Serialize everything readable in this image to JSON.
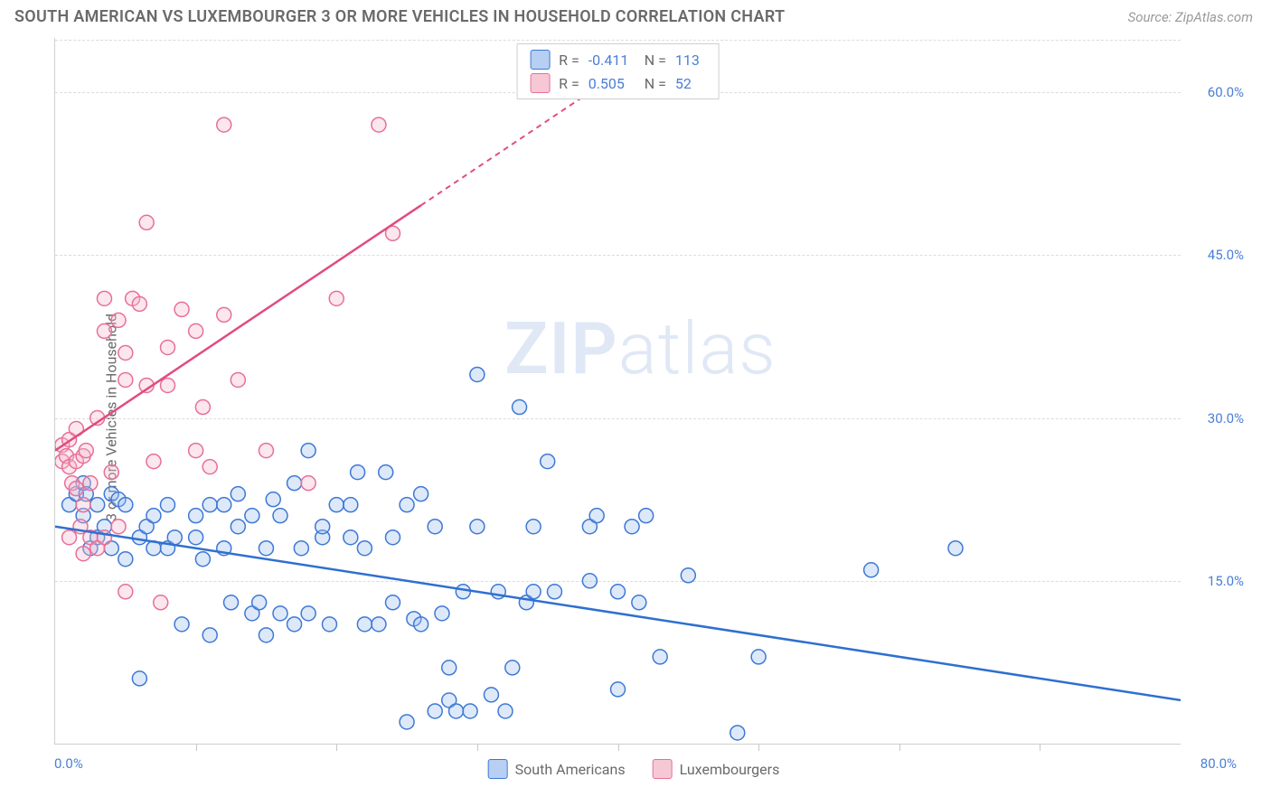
{
  "header": {
    "title": "SOUTH AMERICAN VS LUXEMBOURGER 3 OR MORE VEHICLES IN HOUSEHOLD CORRELATION CHART",
    "source": "Source: ZipAtlas.com"
  },
  "chart": {
    "type": "scatter",
    "ylabel": "3 or more Vehicles in Household",
    "background_color": "#ffffff",
    "grid_color": "#dcdcdc",
    "axis_color": "#d0d0d0",
    "tick_color": "#c8c8c8",
    "xlim": [
      0,
      80
    ],
    "ylim": [
      0,
      65
    ],
    "x_origin_label": "0.0%",
    "x_max_label": "80.0%",
    "xtick_positions": [
      10,
      20,
      30,
      40,
      50,
      60,
      70
    ],
    "y_gridlines": [
      {
        "value": 15,
        "label": "15.0%"
      },
      {
        "value": 30,
        "label": "30.0%"
      },
      {
        "value": 45,
        "label": "45.0%"
      },
      {
        "value": 60,
        "label": "60.0%"
      }
    ],
    "marker_radius": 8,
    "marker_stroke_width": 1.5,
    "marker_fill_opacity": 0.35,
    "trend_line_width": 2.5,
    "series": [
      {
        "name": "South Americans",
        "fill_color": "#9fc1ee",
        "stroke_color": "#3e78d6",
        "swatch_fill": "#b7cff2",
        "swatch_border": "#3e78d6",
        "trend_color": "#2f6fd0",
        "trend": {
          "x1": 0,
          "y1": 20,
          "x2": 80,
          "y2": 4,
          "dash_from_x": null
        },
        "points": [
          [
            1,
            22
          ],
          [
            1.5,
            23
          ],
          [
            2,
            24
          ],
          [
            2,
            21
          ],
          [
            2.2,
            23
          ],
          [
            2.5,
            18
          ],
          [
            3,
            19
          ],
          [
            3,
            22
          ],
          [
            3.5,
            20
          ],
          [
            4,
            23
          ],
          [
            4,
            18
          ],
          [
            4.5,
            22.5
          ],
          [
            5,
            22
          ],
          [
            5,
            17
          ],
          [
            6,
            6
          ],
          [
            6,
            19
          ],
          [
            6.5,
            20
          ],
          [
            7,
            18
          ],
          [
            7,
            21
          ],
          [
            8,
            22
          ],
          [
            8,
            18
          ],
          [
            8.5,
            19
          ],
          [
            9,
            11
          ],
          [
            10,
            19
          ],
          [
            10,
            21
          ],
          [
            10.5,
            17
          ],
          [
            11,
            22
          ],
          [
            11,
            10
          ],
          [
            12,
            18
          ],
          [
            12,
            22
          ],
          [
            12.5,
            13
          ],
          [
            13,
            20
          ],
          [
            13,
            23
          ],
          [
            14,
            12
          ],
          [
            14,
            21
          ],
          [
            14.5,
            13
          ],
          [
            15,
            10
          ],
          [
            15,
            18
          ],
          [
            15.5,
            22.5
          ],
          [
            16,
            12
          ],
          [
            16,
            21
          ],
          [
            17,
            24
          ],
          [
            17,
            11
          ],
          [
            17.5,
            18
          ],
          [
            18,
            12
          ],
          [
            18,
            27
          ],
          [
            19,
            19
          ],
          [
            19,
            20
          ],
          [
            19.5,
            11
          ],
          [
            20,
            22
          ],
          [
            21,
            22
          ],
          [
            21,
            19
          ],
          [
            21.5,
            25
          ],
          [
            22,
            11
          ],
          [
            22,
            18
          ],
          [
            23,
            11
          ],
          [
            23.5,
            25
          ],
          [
            24,
            13
          ],
          [
            24,
            19
          ],
          [
            25,
            2
          ],
          [
            25,
            22
          ],
          [
            25.5,
            11.5
          ],
          [
            26,
            11
          ],
          [
            26,
            23
          ],
          [
            27,
            3
          ],
          [
            27,
            20
          ],
          [
            27.5,
            12
          ],
          [
            28,
            4
          ],
          [
            28,
            7
          ],
          [
            28.5,
            3
          ],
          [
            29,
            14
          ],
          [
            29.5,
            3
          ],
          [
            30,
            34
          ],
          [
            30,
            20
          ],
          [
            31,
            4.5
          ],
          [
            31.5,
            14
          ],
          [
            32,
            3
          ],
          [
            32.5,
            7
          ],
          [
            33,
            31
          ],
          [
            33.5,
            13
          ],
          [
            34,
            14
          ],
          [
            34,
            20
          ],
          [
            35,
            26
          ],
          [
            35.5,
            14
          ],
          [
            38,
            15
          ],
          [
            38,
            20
          ],
          [
            38.5,
            21
          ],
          [
            40,
            5
          ],
          [
            40,
            14
          ],
          [
            41,
            20
          ],
          [
            41.5,
            13
          ],
          [
            42,
            21
          ],
          [
            43,
            8
          ],
          [
            45,
            15.5
          ],
          [
            48.5,
            1
          ],
          [
            50,
            8
          ],
          [
            58,
            16
          ],
          [
            64,
            18
          ]
        ]
      },
      {
        "name": "Luxembourgers",
        "fill_color": "#f4b9cb",
        "stroke_color": "#e86f98",
        "swatch_fill": "#f6c8d6",
        "swatch_border": "#e86f98",
        "trend_color": "#e14b83",
        "trend": {
          "x1": 0,
          "y1": 27,
          "x2": 38,
          "y2": 60,
          "dash_from_x": 26
        },
        "points": [
          [
            0.5,
            26
          ],
          [
            0.5,
            27.5
          ],
          [
            0.8,
            26.5
          ],
          [
            1,
            25.5
          ],
          [
            1,
            28
          ],
          [
            1,
            19
          ],
          [
            1.2,
            24
          ],
          [
            1.5,
            23.5
          ],
          [
            1.5,
            26
          ],
          [
            1.5,
            29
          ],
          [
            1.8,
            20
          ],
          [
            2,
            17.5
          ],
          [
            2,
            22
          ],
          [
            2,
            26.5
          ],
          [
            2.2,
            27
          ],
          [
            2.5,
            19
          ],
          [
            2.5,
            24
          ],
          [
            3,
            18
          ],
          [
            3,
            30
          ],
          [
            3.5,
            19
          ],
          [
            3.5,
            38
          ],
          [
            3.5,
            41
          ],
          [
            4,
            25
          ],
          [
            4.5,
            20
          ],
          [
            4.5,
            39
          ],
          [
            5,
            36
          ],
          [
            5,
            33.5
          ],
          [
            5,
            14
          ],
          [
            5.5,
            41
          ],
          [
            6,
            40.5
          ],
          [
            6.5,
            48
          ],
          [
            6.5,
            33
          ],
          [
            7,
            26
          ],
          [
            7.5,
            13
          ],
          [
            8,
            36.5
          ],
          [
            8,
            33
          ],
          [
            9,
            40
          ],
          [
            10,
            38
          ],
          [
            10,
            27
          ],
          [
            10.5,
            31
          ],
          [
            11,
            25.5
          ],
          [
            12,
            39.5
          ],
          [
            12,
            57
          ],
          [
            13,
            33.5
          ],
          [
            15,
            27
          ],
          [
            18,
            24
          ],
          [
            20,
            41
          ],
          [
            23,
            57
          ],
          [
            24,
            47
          ]
        ]
      }
    ],
    "stats_box": {
      "rows": [
        {
          "series_index": 0,
          "r_label": "R =",
          "r_value": "-0.411",
          "n_label": "N =",
          "n_value": "113"
        },
        {
          "series_index": 1,
          "r_label": "R =",
          "r_value": "0.505",
          "n_label": "N =",
          "n_value": "52"
        }
      ]
    },
    "watermark": {
      "text_bold": "ZIP",
      "text_light": "atlas",
      "color": "#c7d7ef",
      "opacity": 0.55
    },
    "legend": {
      "items": [
        {
          "series_index": 0,
          "label": "South Americans"
        },
        {
          "series_index": 1,
          "label": "Luxembourgers"
        }
      ]
    }
  }
}
